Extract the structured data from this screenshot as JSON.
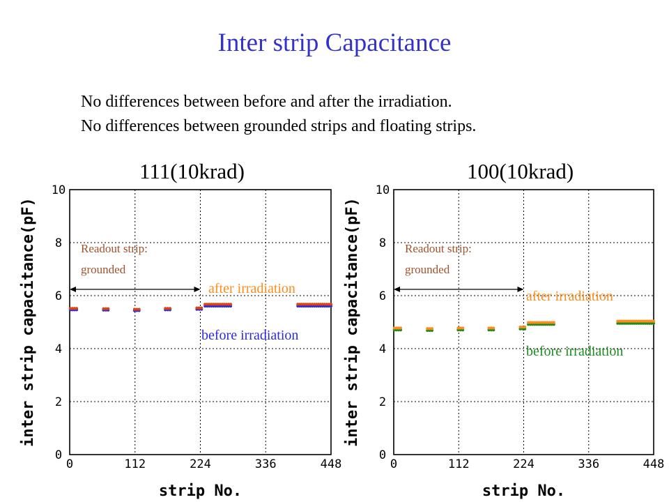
{
  "slide": {
    "title": "Inter strip Capacitance",
    "notes": [
      "No differences between before and after the irradiation.",
      "No differences between grounded strips and floating strips."
    ]
  },
  "colors": {
    "title": "#3333cc",
    "after": "#ff8c1a",
    "before_left": "#2b2bdd",
    "before_right": "#1f8a1f",
    "left_points": "#dd4411",
    "annotation_text": "#a0522d"
  },
  "chart_data": [
    {
      "type": "scatter",
      "title": "111(10krad)",
      "xlabel": "strip No.",
      "ylabel": "inter strip capacitance(pF)",
      "xlim": [
        0,
        448
      ],
      "ylim": [
        0,
        10
      ],
      "xticks": [
        0,
        112,
        224,
        336,
        448
      ],
      "yticks": [
        0,
        2,
        4,
        6,
        8,
        10
      ],
      "grid": true,
      "annotations": {
        "readout": [
          "Readout strip:",
          "grounded"
        ],
        "readout_range": [
          0,
          224
        ],
        "after_label": "after irradiation",
        "before_label": "before irradiation"
      },
      "series": [
        {
          "name": "before irradiation",
          "color": "#2b2bdd",
          "segments": [
            {
              "x": [
                1,
                12
              ],
              "y": 5.48
            },
            {
              "x": [
                58,
                66
              ],
              "y": 5.47
            },
            {
              "x": [
                111,
                119
              ],
              "y": 5.45
            },
            {
              "x": [
                164,
                172
              ],
              "y": 5.48
            },
            {
              "x": [
                218,
                226
              ],
              "y": 5.5
            },
            {
              "x": [
                232,
                276
              ],
              "y": 5.62
            },
            {
              "x": [
                391,
                448
              ],
              "y": 5.62
            }
          ]
        },
        {
          "name": "after irradiation",
          "color": "#dd4411",
          "segments": [
            {
              "x": [
                1,
                12
              ],
              "y": 5.5
            },
            {
              "x": [
                58,
                66
              ],
              "y": 5.49
            },
            {
              "x": [
                111,
                119
              ],
              "y": 5.47
            },
            {
              "x": [
                164,
                172
              ],
              "y": 5.5
            },
            {
              "x": [
                218,
                226
              ],
              "y": 5.52
            },
            {
              "x": [
                232,
                276
              ],
              "y": 5.66
            },
            {
              "x": [
                391,
                448
              ],
              "y": 5.66
            }
          ]
        }
      ]
    },
    {
      "type": "scatter",
      "title": "100(10krad)",
      "xlabel": "strip No.",
      "ylabel": "inter strip capacitance(pF)",
      "xlim": [
        0,
        448
      ],
      "ylim": [
        0,
        10
      ],
      "xticks": [
        0,
        112,
        224,
        336,
        448
      ],
      "yticks": [
        0,
        2,
        4,
        6,
        8,
        10
      ],
      "grid": true,
      "annotations": {
        "readout": [
          "Readout strip:",
          "grounded"
        ],
        "readout_range": [
          0,
          224
        ],
        "after_label": "after irradiation",
        "before_label": "before irradiation"
      },
      "series": [
        {
          "name": "before irradiation",
          "color": "#1f8a1f",
          "segments": [
            {
              "x": [
                1,
                12
              ],
              "y": 4.72
            },
            {
              "x": [
                58,
                66
              ],
              "y": 4.7
            },
            {
              "x": [
                111,
                119
              ],
              "y": 4.72
            },
            {
              "x": [
                164,
                172
              ],
              "y": 4.72
            },
            {
              "x": [
                218,
                226
              ],
              "y": 4.76
            },
            {
              "x": [
                232,
                276
              ],
              "y": 4.93
            },
            {
              "x": [
                386,
                448
              ],
              "y": 4.97
            }
          ]
        },
        {
          "name": "after irradiation",
          "color": "#ff8c1a",
          "segments": [
            {
              "x": [
                1,
                12
              ],
              "y": 4.76
            },
            {
              "x": [
                58,
                66
              ],
              "y": 4.74
            },
            {
              "x": [
                111,
                119
              ],
              "y": 4.76
            },
            {
              "x": [
                164,
                172
              ],
              "y": 4.76
            },
            {
              "x": [
                218,
                226
              ],
              "y": 4.8
            },
            {
              "x": [
                232,
                276
              ],
              "y": 4.97
            },
            {
              "x": [
                386,
                448
              ],
              "y": 5.02
            }
          ]
        }
      ]
    }
  ]
}
